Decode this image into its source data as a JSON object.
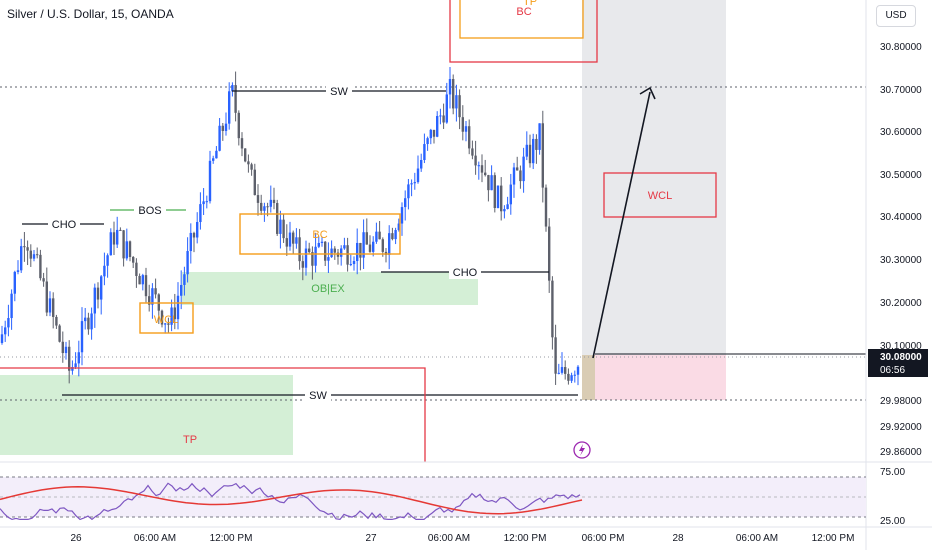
{
  "header": {
    "title": "Silver / U.S. Dollar, 15, OANDA",
    "currency_button": "USD"
  },
  "price_axis": {
    "ticks": [
      "30.80000",
      "30.70000",
      "30.60000",
      "30.50000",
      "30.40000",
      "30.30000",
      "30.20000",
      "30.10000",
      "29.98000",
      "29.92000",
      "29.86000"
    ],
    "current_price": "30.08000",
    "countdown": "06:56"
  },
  "time_axis": {
    "ticks": [
      "26",
      "06:00 AM",
      "12:00 PM",
      "27",
      "06:00 AM",
      "12:00 PM",
      "06:00 PM",
      "28",
      "06:00 AM",
      "12:00 PM"
    ]
  },
  "rsi": {
    "ticks": [
      "75.00",
      "25.00"
    ],
    "line_color": "#7e57c2",
    "ma_color": "#e53935"
  },
  "annotations": {
    "cho_left": "CHO",
    "bos": "BOS",
    "sw_top": "SW",
    "bc_mid": "BC",
    "ob_ex": "OB|EX",
    "wcl_low": "WCL",
    "cho_right": "CHO",
    "sw_bottom": "SW",
    "tp_bottom": "TP",
    "tp_top": "TP",
    "bc_top": "BC",
    "wcl_right": "WCL"
  },
  "colors": {
    "up": "#2962ff",
    "down": "#5d606b",
    "orange": "#f59d1a",
    "red": "#e53946",
    "green_zone": "#d4efd6",
    "pink_zone": "#fadbe5",
    "gray_zone": "#e8e9ec"
  },
  "chart_data": {
    "type": "candlestick",
    "title": "Silver / U.S. Dollar, 15, OANDA",
    "y_range": [
      29.84,
      30.86
    ],
    "last_price": 30.08,
    "close_path": [
      {
        "time": "25 ~20:00",
        "close": 30.12
      },
      {
        "time": "25 ~23:00",
        "close": 30.38
      },
      {
        "time": "26 ~02:00",
        "close": 30.05
      },
      {
        "time": "26 ~05:00",
        "close": 30.38
      },
      {
        "time": "26 ~08:00",
        "close": 30.16
      },
      {
        "time": "26 ~12:00",
        "close": 30.7
      },
      {
        "time": "26 ~14:00",
        "close": 30.5
      },
      {
        "time": "26 ~18:00",
        "close": 30.32
      },
      {
        "time": "27 ~00:00",
        "close": 30.35
      },
      {
        "time": "27 ~06:00",
        "close": 30.7
      },
      {
        "time": "27 ~09:00",
        "close": 30.44
      },
      {
        "time": "27 ~12:00",
        "close": 30.6
      },
      {
        "time": "27 ~15:00",
        "close": 30.03
      },
      {
        "time": "27 ~16:15",
        "close": 30.08
      }
    ],
    "levels": {
      "sw_high": 30.7,
      "cho_left": 30.38,
      "cho_right": 30.27,
      "sw_low": 29.98
    },
    "rsi_range": [
      25,
      75
    ]
  }
}
